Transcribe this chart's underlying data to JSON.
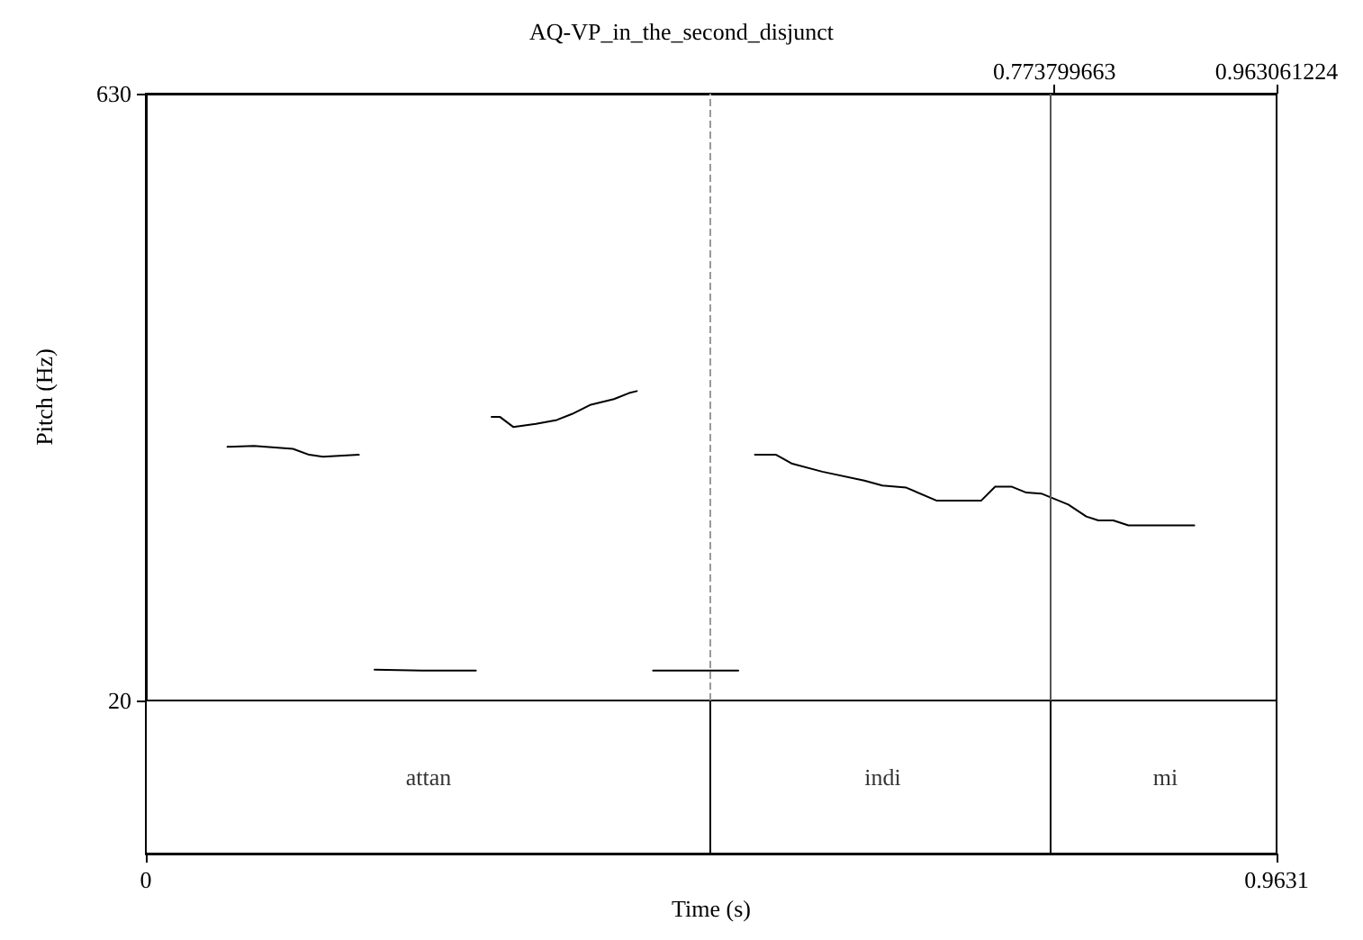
{
  "chart_data": {
    "type": "line",
    "title": "AQ-VP_in_the_second_disjunct",
    "xlabel": "Time (s)",
    "ylabel": "Pitch (Hz)",
    "xlim": [
      0,
      0.9631
    ],
    "xticks": [
      0,
      0.9631
    ],
    "ylim": [
      20,
      630
    ],
    "yticks": [
      20,
      630
    ],
    "x2lim": [
      0,
      0.963061224
    ],
    "x2ticks": [
      0.773799663,
      0.963061224
    ],
    "marker": "none",
    "line_style": "solid",
    "series": [
      {
        "color": "#000000",
        "x": [
          0.0695,
          0.092,
          0.1253,
          0.1391,
          0.1508,
          0.1814
        ],
        "values": [
          275,
          276,
          273,
          267,
          265,
          267
        ]
      },
      {
        "color": "#000000",
        "x": [
          0.1948,
          0.2351,
          0.2811
        ],
        "values": [
          51,
          50,
          50
        ]
      },
      {
        "color": "#000000",
        "x": [
          0.2945,
          0.3017,
          0.3129,
          0.3323,
          0.3501,
          0.363,
          0.3783,
          0.3987,
          0.4115,
          0.4182
        ],
        "values": [
          305,
          305,
          295,
          298,
          302,
          308,
          317,
          323,
          329,
          331
        ]
      },
      {
        "color": "#000000",
        "x": [
          0.432,
          0.5046
        ],
        "values": [
          50,
          50
        ]
      },
      {
        "color": "#000000",
        "x": [
          0.5188,
          0.5368,
          0.5506,
          0.5762,
          0.6119,
          0.6273,
          0.6477,
          0.6733,
          0.7116,
          0.7234,
          0.7372,
          0.7499,
          0.7627,
          0.7857,
          0.801,
          0.8113,
          0.824,
          0.8369,
          0.893
        ],
        "values": [
          267,
          267,
          258,
          250,
          241,
          236,
          234,
          221,
          221,
          235,
          235,
          229,
          228,
          217,
          205,
          201,
          201,
          196,
          196
        ]
      }
    ],
    "ref_lines": [
      {
        "axis": "x",
        "value": 0.4815,
        "color": "#999999",
        "line_style": "dashed"
      },
      {
        "axis": "x",
        "value": 0.773799663,
        "color": "#555555",
        "line_style": "solid"
      }
    ],
    "annotations": [
      "attan",
      "indi",
      "mi"
    ]
  }
}
